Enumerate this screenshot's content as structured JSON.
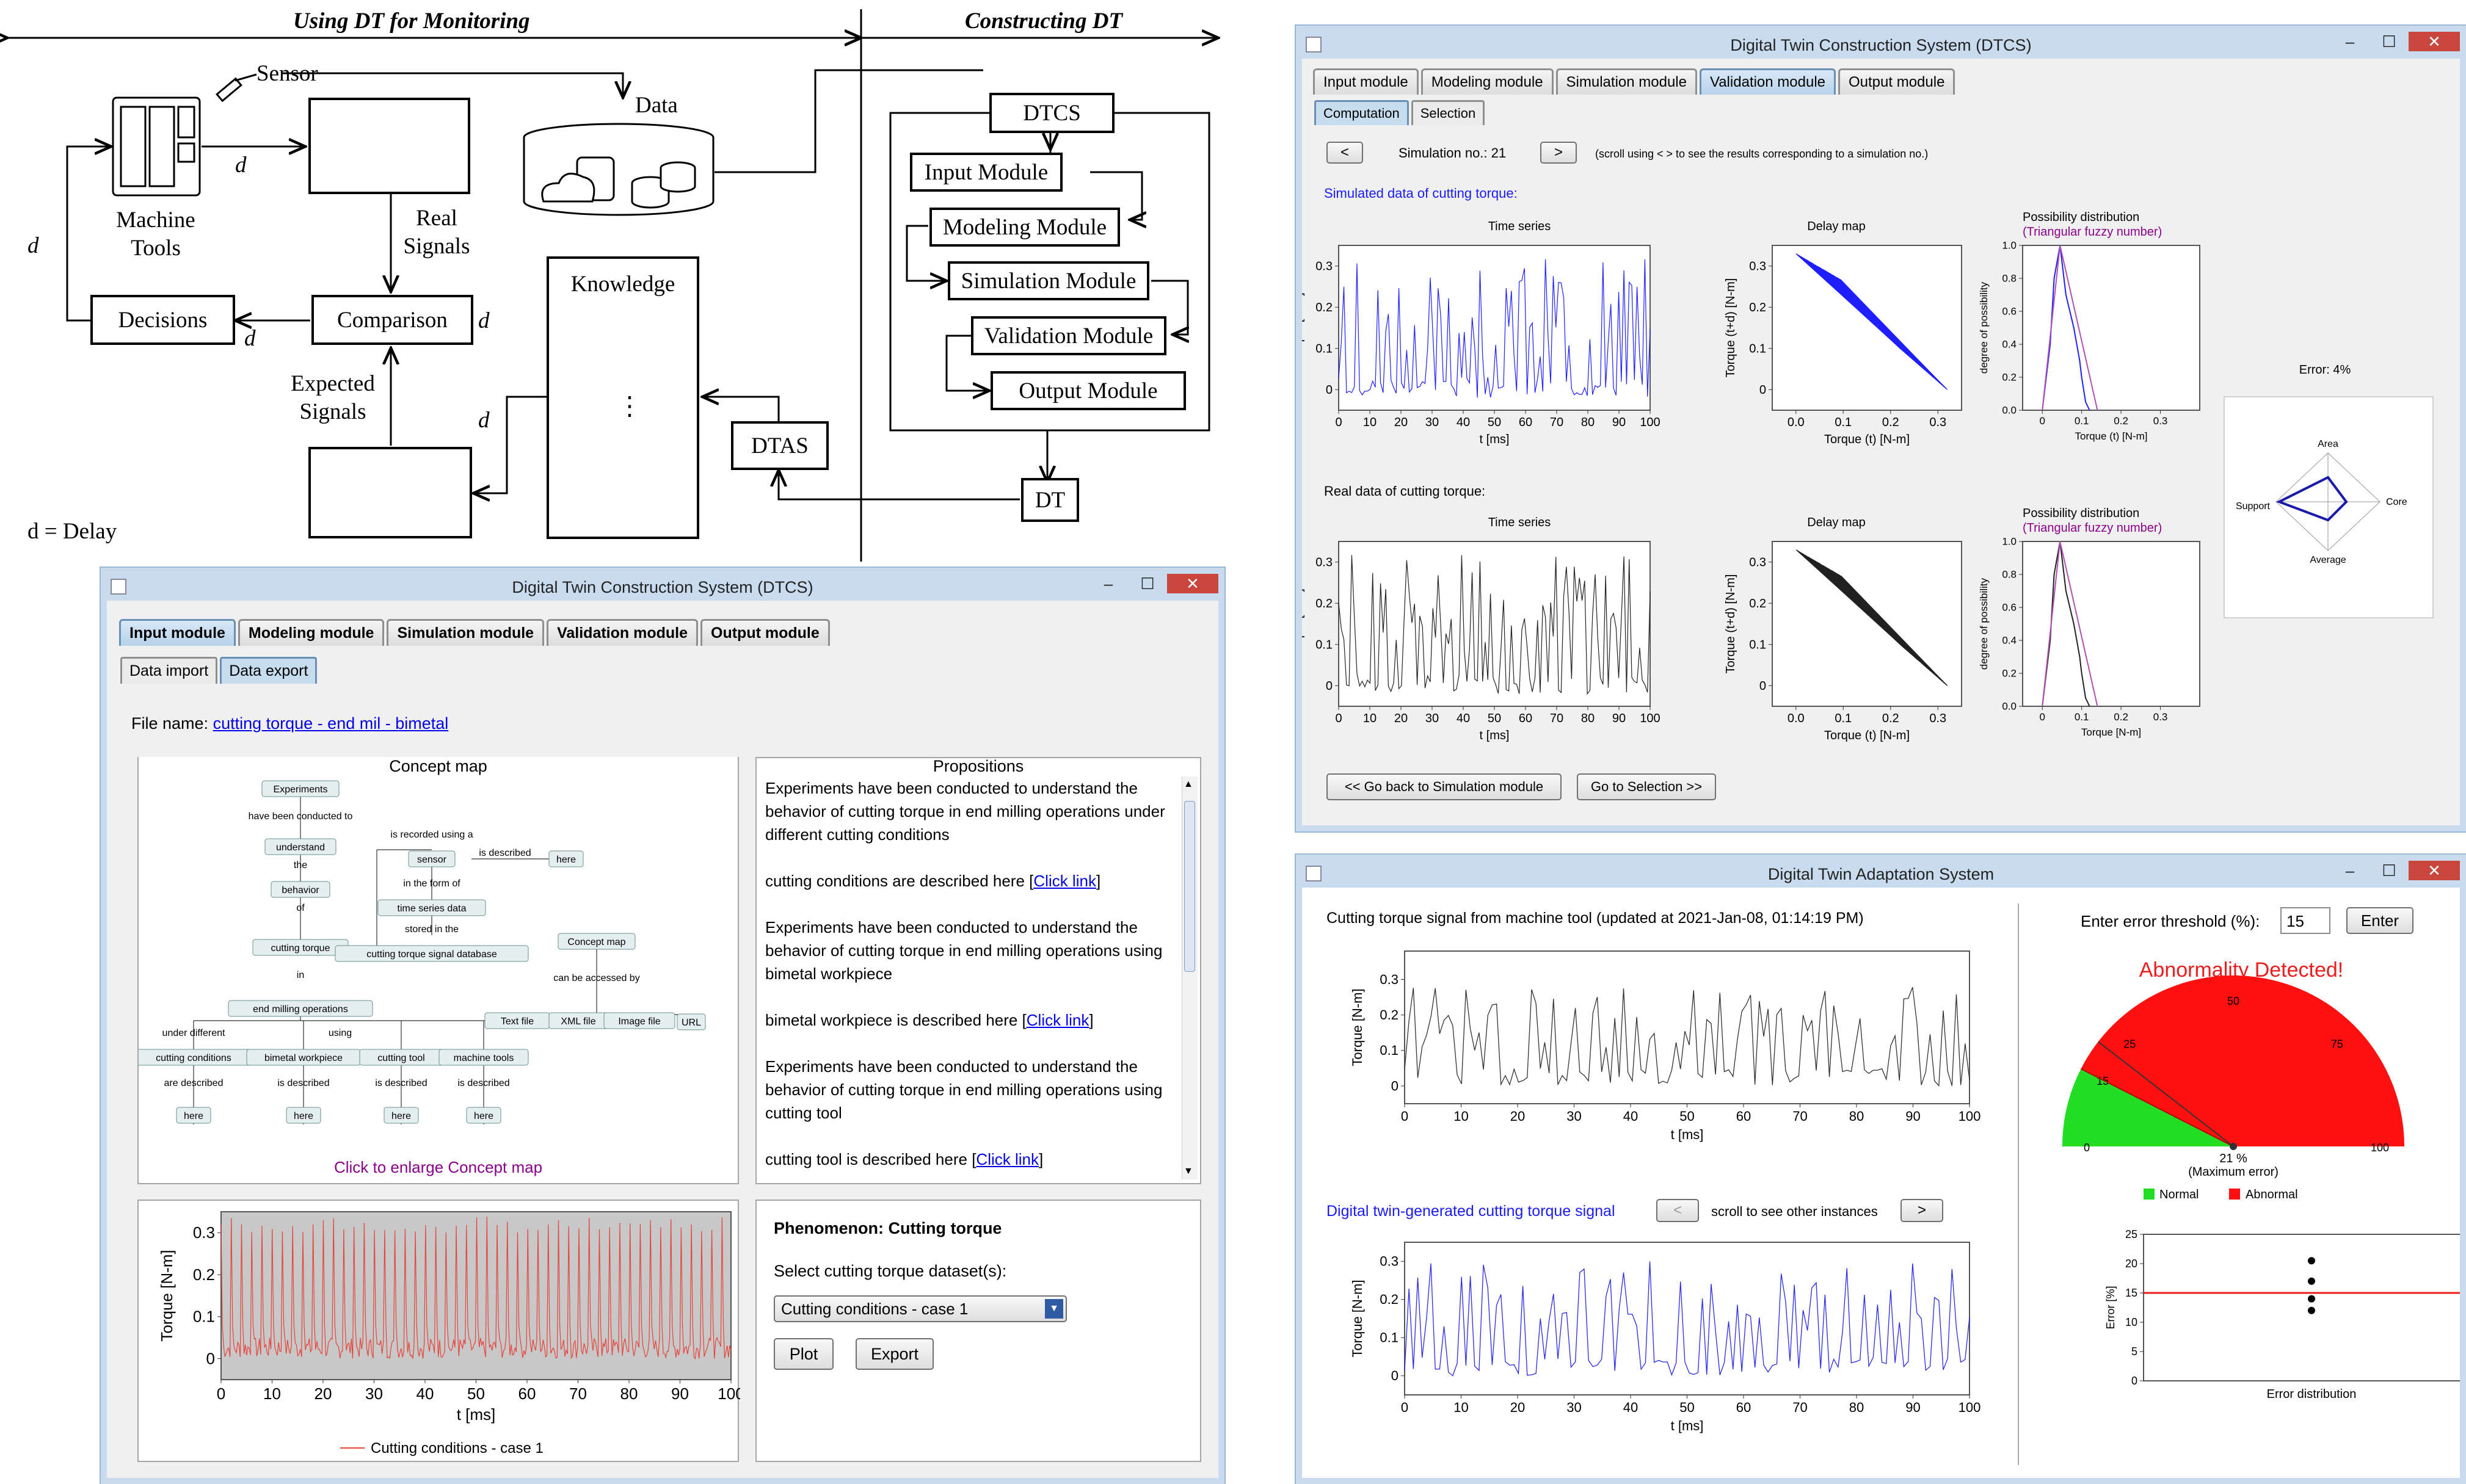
{
  "diagram": {
    "left_heading": "Using DT for Monitoring",
    "right_heading": "Constructing DT",
    "sensor_label": "Sensor",
    "data_label": "Data",
    "machine_tools_label": "Machine Tools",
    "real_signals_label": "Real Signals",
    "decisions_label": "Decisions",
    "comparison_label": "Comparison",
    "expected_signals_label": "Expected Signals",
    "knowledge_label": "Knowledge",
    "knowledge_dots": "⋮",
    "dtas_label": "DTAS",
    "dt_label": "DT",
    "dtcs_label": "DTCS",
    "modules": [
      "Input Module",
      "Modeling Module",
      "Simulation Module",
      "Validation Module",
      "Output Module"
    ],
    "delay_marker": "d",
    "delay_legend": "d = Delay"
  },
  "dtcs_input_window": {
    "title": "Digital Twin Construction System (DTCS)",
    "min_icon": "minimize-icon",
    "tabs": [
      "Input module",
      "Modeling module",
      "Simulation module",
      "Validation module",
      "Output module"
    ],
    "subtabs": [
      "Data import",
      "Data export"
    ],
    "file_name_label": "File name:",
    "file_name_value": "cutting torque - end mil - bimetal",
    "concept_map_title": "Concept map",
    "concept_map": {
      "experiments": "Experiments",
      "have_been": "have been conducted to",
      "understand": "understand",
      "the": "the",
      "behavior": "behavior",
      "of": "of",
      "cutting_torque": "cutting torque",
      "in": "in",
      "end_milling": "end milling operations",
      "is_recorded": "is recorded using a",
      "sensor": "sensor",
      "is_described": "is described",
      "here": "here",
      "in_form": "in the form of",
      "time_series": "time series data",
      "stored": "stored in the",
      "database": "cutting torque signal database",
      "concept_map": "Concept map",
      "accessed": "can be accessed by",
      "text_file": "Text file",
      "xml_file": "XML file",
      "image_file": "Image file",
      "url": "URL",
      "under_different": "under different",
      "using": "using",
      "cutting_conditions": "cutting conditions",
      "bimetal_workpiece": "bimetal workpiece",
      "cutting_tool": "cutting tool",
      "machine_tools": "machine tools",
      "are_described": "are described",
      "is_described2": "is described"
    },
    "enlarge_label": "Click to enlarge Concept map",
    "propositions_title": "Propositions",
    "propositions": [
      "Experiments have been conducted to understand the behavior of cutting torque in end milling operations under different cutting conditions",
      "cutting conditions are described here [",
      "Experiments have been conducted to understand the behavior of cutting torque in end milling operations using bimetal workpiece",
      "bimetal workpiece is described here [",
      "Experiments have been conducted to understand the behavior of cutting torque in end milling operations using cutting tool",
      "cutting tool is described here ["
    ],
    "click_link": "Click link",
    "close_bracket": "]",
    "phenomenon_label": "Phenomenon: Cutting torque",
    "select_label": "Select cutting torque dataset(s):",
    "select_value": "Cutting conditions - case 1",
    "plot_button": "Plot",
    "export_button": "Export",
    "plot_legend": "Cutting conditions - case 1",
    "plot_ylabel": "Torque [N-m]",
    "plot_xlabel": "t [ms]"
  },
  "dtcs_validation_window": {
    "title": "Digital Twin Construction System (DTCS)",
    "tabs": [
      "Input module",
      "Modeling module",
      "Simulation module",
      "Validation module",
      "Output module"
    ],
    "subtabs": [
      "Computation",
      "Selection"
    ],
    "prev_button": "<",
    "next_button": ">",
    "simulation_label": "Simulation no.: 21",
    "scroll_hint": "(scroll using < > to see the results corresponding to a simulation no.)",
    "simulated_heading": "Simulated data of cutting torque:",
    "real_heading": "Real data of cutting torque:",
    "time_series_title": "Time series",
    "delay_map_title": "Delay map",
    "possibility_title": "Possibility distribution",
    "triangular_label": "(Triangular fuzzy number)",
    "torque_ylabel": "Torque [N-m]",
    "delay_ylabel": "Torque (t+d) [N-m]",
    "delay_xlabel": "Torque (t) [N-m]",
    "poss_ylabel": "degree of possibility",
    "poss_xlabel_sim": "Torque (t) [N-m]",
    "poss_xlabel_real": "Torque [N-m]",
    "t_label": "t [ms]",
    "error_label": "Error: 4%",
    "radar_labels": [
      "Area",
      "Core",
      "Average",
      "Support"
    ],
    "back_button": "<< Go back to Simulation module",
    "selection_button": "Go to Selection >>"
  },
  "dtas_window": {
    "title": "Digital Twin Adaptation System",
    "signal_heading": "Cutting torque signal from machine tool (updated at 2021-Jan-08, 01:14:19 PM)",
    "dt_heading": "Digital twin-generated cutting torque signal",
    "prev_button": "<",
    "next_button": ">",
    "scroll_hint": "scroll to see other instances",
    "threshold_label": "Enter error threshold (%):",
    "threshold_value": "15",
    "enter_button": "Enter",
    "alert": "Abnormality Detected!",
    "gauge_value": "21 %",
    "gauge_caption": "(Maximum error)",
    "gauge_ticks": [
      "0",
      "15",
      "25",
      "50",
      "75",
      "100"
    ],
    "legend_normal": "Normal",
    "legend_abnormal": "Abnormal",
    "err_ylabel": "Error [%]",
    "err_xlabel": "Error distribution",
    "torque_ylabel": "Torque [N-m]",
    "t_label": "t [ms]"
  },
  "chart_data": [
    {
      "type": "line",
      "name": "input-plot",
      "xlabel": "t [ms]",
      "ylabel": "Torque [N-m]",
      "xlim": [
        0,
        100
      ],
      "ylim": [
        -0.05,
        0.35
      ],
      "legend": "Cutting conditions - case 1",
      "color": "#e8423a"
    },
    {
      "type": "line",
      "name": "sim-time-series",
      "xlabel": "t [ms]",
      "ylabel": "Torque [N-m]",
      "xlim": [
        0,
        100
      ],
      "ylim": [
        -0.05,
        0.35
      ],
      "color": "#1f1fff"
    },
    {
      "type": "line",
      "name": "real-time-series",
      "xlabel": "t [ms]",
      "ylabel": "Torque [N-m]",
      "xlim": [
        0,
        100
      ],
      "ylim": [
        -0.05,
        0.35
      ],
      "color": "#222222"
    },
    {
      "type": "scatter",
      "name": "error-distribution",
      "ylabel": "Error [%]",
      "ylim": [
        0,
        25
      ],
      "threshold": 15,
      "values": [
        20.5,
        17,
        14,
        12
      ]
    }
  ],
  "x_ticks": [
    "0",
    "10",
    "20",
    "30",
    "40",
    "50",
    "60",
    "70",
    "80",
    "90",
    "100"
  ],
  "y_ticks_torque": [
    "0",
    "0.1",
    "0.2",
    "0.3"
  ],
  "y_ticks_poss": [
    "0.0",
    "0.2",
    "0.4",
    "0.6",
    "0.8",
    "1.0"
  ],
  "x_ticks_small": [
    "0",
    "0.1",
    "0.2",
    "0.3"
  ],
  "x_ticks_delay": [
    "0.0",
    "0.1",
    "0.2",
    "0.3"
  ],
  "y_ticks_err": [
    "0",
    "5",
    "10",
    "15",
    "20",
    "25"
  ]
}
